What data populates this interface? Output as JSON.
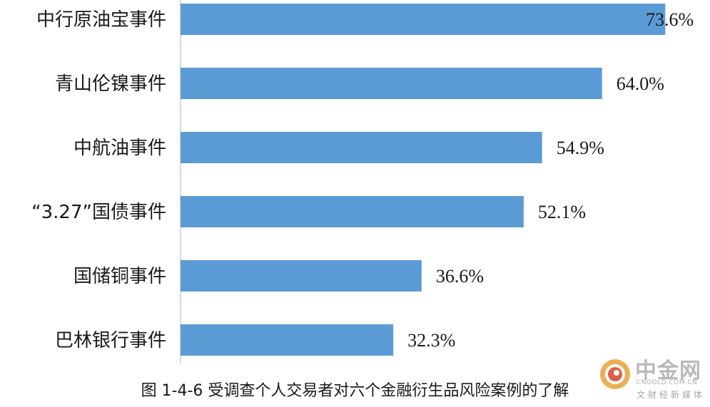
{
  "caption": "图 1-4-6  受调查个人交易者对六个金融衍生品风险案例的了解",
  "watermark": {
    "name": "中金网",
    "domain": "CNGOLD.COM.CN",
    "slogan": "文财经新媒体"
  },
  "colors": {
    "bar": "#5b9bd5",
    "axis": "#d9d9d9",
    "text": "#1a1a1a",
    "logo_outer": "#e8a23a",
    "logo_inner": "#d2452b"
  },
  "chart_data": {
    "type": "bar",
    "orientation": "horizontal",
    "categories": [
      "中行原油宝事件",
      "青山伦镍事件",
      "中航油事件",
      "“3.27”国债事件",
      "国储铜事件",
      "巴林银行事件"
    ],
    "values": [
      73.6,
      64.0,
      54.9,
      52.1,
      36.6,
      32.3
    ],
    "value_labels": [
      "73.6%",
      "64.0%",
      "54.9%",
      "52.1%",
      "36.6%",
      "32.3%"
    ],
    "xlim": [
      0,
      80
    ],
    "grid": false,
    "legend": "none"
  }
}
